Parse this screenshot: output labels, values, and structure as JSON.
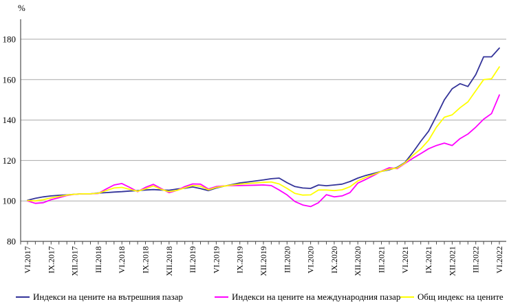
{
  "chart_data": {
    "type": "line",
    "title": "",
    "ylabel": "%",
    "ylim": [
      80,
      186
    ],
    "grid": "horizontal",
    "legend_position": "bottom",
    "y_axis": {
      "ticks": [
        80,
        100,
        120,
        140,
        160,
        180
      ]
    },
    "x_axis": {
      "labels": [
        "VI.2017",
        "IX.2017",
        "XII.2017",
        "III.2018",
        "VI.2018",
        "IX.2018",
        "XII.2018",
        "III.2019",
        "VI.2019",
        "IX.2019",
        "XII.2019",
        "III.2020",
        "VI.2020",
        "IX.2020",
        "XII.2020",
        "III.2021",
        "VI.2021",
        "IX.2021",
        "XII.2021",
        "III.2022",
        "VI.2022"
      ],
      "label_interval_months": 3,
      "minor_tick": "monthly",
      "points_total": 61
    },
    "style": {
      "grid_color": "#aaaaaa",
      "axis_color": "#4d4d4d",
      "text_color": "#000000",
      "background": "#ffffff"
    },
    "series": [
      {
        "name": "Индекси на цените на вътрешния пазар",
        "color": "#333399",
        "values": [
          100.3,
          101.3,
          102.0,
          102.5,
          102.8,
          103.0,
          103.3,
          103.5,
          103.5,
          103.9,
          104.1,
          104.4,
          104.6,
          104.9,
          105.1,
          105.4,
          105.6,
          105.4,
          105.3,
          105.9,
          106.3,
          106.9,
          106.1,
          105.1,
          106.4,
          107.3,
          108.1,
          108.9,
          109.4,
          109.9,
          110.4,
          111.0,
          111.3,
          109.0,
          107.1,
          106.4,
          106.2,
          107.9,
          107.5,
          107.9,
          108.3,
          109.6,
          111.3,
          112.6,
          113.6,
          114.6,
          115.4,
          116.6,
          119.0,
          124.0,
          129.5,
          134.5,
          142.0,
          150.0,
          155.5,
          158.0,
          156.6,
          162.5,
          171.3,
          171.3,
          175.6
        ]
      },
      {
        "name": "Индекси на цените на международния пазар",
        "color": "#ff00ff",
        "values": [
          100.0,
          98.8,
          99.1,
          100.6,
          101.6,
          102.7,
          103.3,
          103.5,
          103.5,
          103.7,
          105.9,
          107.9,
          108.6,
          106.7,
          104.6,
          106.7,
          108.2,
          106.1,
          104.1,
          105.2,
          107.1,
          108.4,
          108.3,
          105.9,
          107.1,
          107.4,
          107.6,
          107.6,
          107.7,
          107.8,
          107.9,
          107.6,
          105.4,
          103.0,
          99.7,
          98.0,
          97.2,
          99.1,
          103.1,
          102.0,
          102.5,
          104.1,
          108.8,
          110.6,
          112.6,
          114.7,
          116.4,
          116.0,
          118.6,
          121.1,
          123.4,
          125.8,
          127.4,
          128.6,
          127.4,
          130.8,
          133.1,
          136.5,
          140.4,
          143.2,
          152.4
        ]
      },
      {
        "name": "Общ индекс на цените",
        "color": "#ffff00",
        "values": [
          100.2,
          100.0,
          100.6,
          101.5,
          102.2,
          102.9,
          103.3,
          103.5,
          103.5,
          103.8,
          105.1,
          106.4,
          106.7,
          105.7,
          104.8,
          106.0,
          107.4,
          105.7,
          104.6,
          105.2,
          106.5,
          107.6,
          107.3,
          105.5,
          106.7,
          107.3,
          107.9,
          108.3,
          108.6,
          108.9,
          109.2,
          109.4,
          108.4,
          106.2,
          103.7,
          102.9,
          103.0,
          105.4,
          105.4,
          105.1,
          105.5,
          107.0,
          109.9,
          111.6,
          113.1,
          114.6,
          115.7,
          116.3,
          118.8,
          122.5,
          125.7,
          130.0,
          136.5,
          141.4,
          142.6,
          146.1,
          149.0,
          154.5,
          160.0,
          160.4,
          166.3
        ]
      }
    ]
  }
}
